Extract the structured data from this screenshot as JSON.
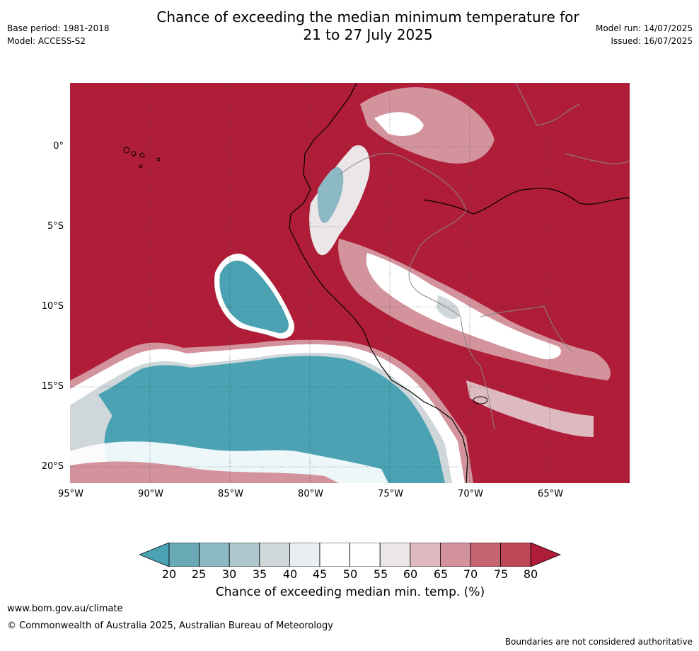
{
  "title": {
    "line1": "Chance of exceeding the median minimum temperature for",
    "line2": "21 to 27 July 2025"
  },
  "meta_left": {
    "base_period": "Base period: 1981-2018",
    "model": "Model: ACCESS-S2"
  },
  "meta_right": {
    "model_run": "Model run: 14/07/2025",
    "issued": "Issued: 16/07/2025"
  },
  "map": {
    "lat_labels": [
      "0°",
      "5°S",
      "10°S",
      "15°S",
      "20°S"
    ],
    "lon_labels": [
      "95°W",
      "90°W",
      "85°W",
      "80°W",
      "75°W",
      "70°W",
      "65°W"
    ],
    "colors": {
      "high": "#b01d39",
      "ocean_low": "#4aa2b3"
    }
  },
  "colorbar": {
    "ticks": [
      "20",
      "25",
      "30",
      "35",
      "40",
      "45",
      "50",
      "55",
      "60",
      "65",
      "70",
      "75",
      "80"
    ],
    "colors": [
      "#4aa2b3",
      "#6aa9b6",
      "#8db9c4",
      "#adc7cd",
      "#cfd7da",
      "#e9eef0",
      "#ffffff",
      "#ffffff",
      "#ebe6e8",
      "#deb9c0",
      "#d3939c",
      "#c6646f",
      "#be4756",
      "#b01d39"
    ],
    "title": "Chance of exceeding median min. temp. (%)"
  },
  "footer": {
    "website": "www.bom.gov.au/climate",
    "copyright": "© Commonwealth of Australia 2025, Australian Bureau of Meteorology",
    "disclaimer": "Boundaries are not considered authoritative"
  }
}
